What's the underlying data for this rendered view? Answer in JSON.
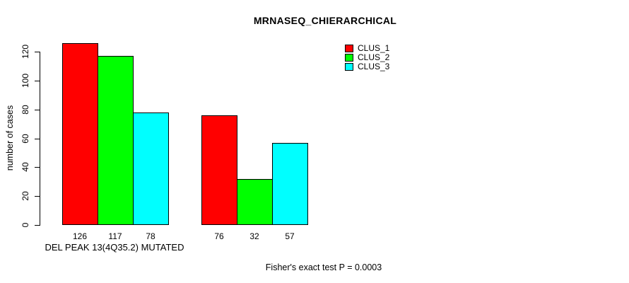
{
  "chart_data": {
    "type": "bar",
    "title": "MRNASEQ_CHIERARCHICAL",
    "ylabel": "number of cases",
    "xlabel": "DEL PEAK 13(4Q35.2) MUTATED",
    "footer": "Fisher's exact test P = 0.0003",
    "categories": [
      "group_1",
      "group_2"
    ],
    "series": [
      {
        "name": "CLUS_1",
        "color": "#FF0000",
        "values": [
          126,
          76
        ]
      },
      {
        "name": "CLUS_2",
        "color": "#00FF00",
        "values": [
          117,
          32
        ]
      },
      {
        "name": "CLUS_3",
        "color": "#00FFFF",
        "values": [
          78,
          57
        ]
      }
    ],
    "bar_value_labels": [
      [
        126,
        117,
        78
      ],
      [
        76,
        32,
        57
      ]
    ],
    "yticks": [
      0,
      20,
      40,
      60,
      80,
      100,
      120
    ],
    "ylim": [
      0,
      126
    ],
    "grid": false,
    "legend_position": "top-right",
    "xlabel_position": "under-first-group",
    "colors": {
      "background": "#FFFFFF",
      "axis": "#000000",
      "text": "#000000"
    }
  }
}
